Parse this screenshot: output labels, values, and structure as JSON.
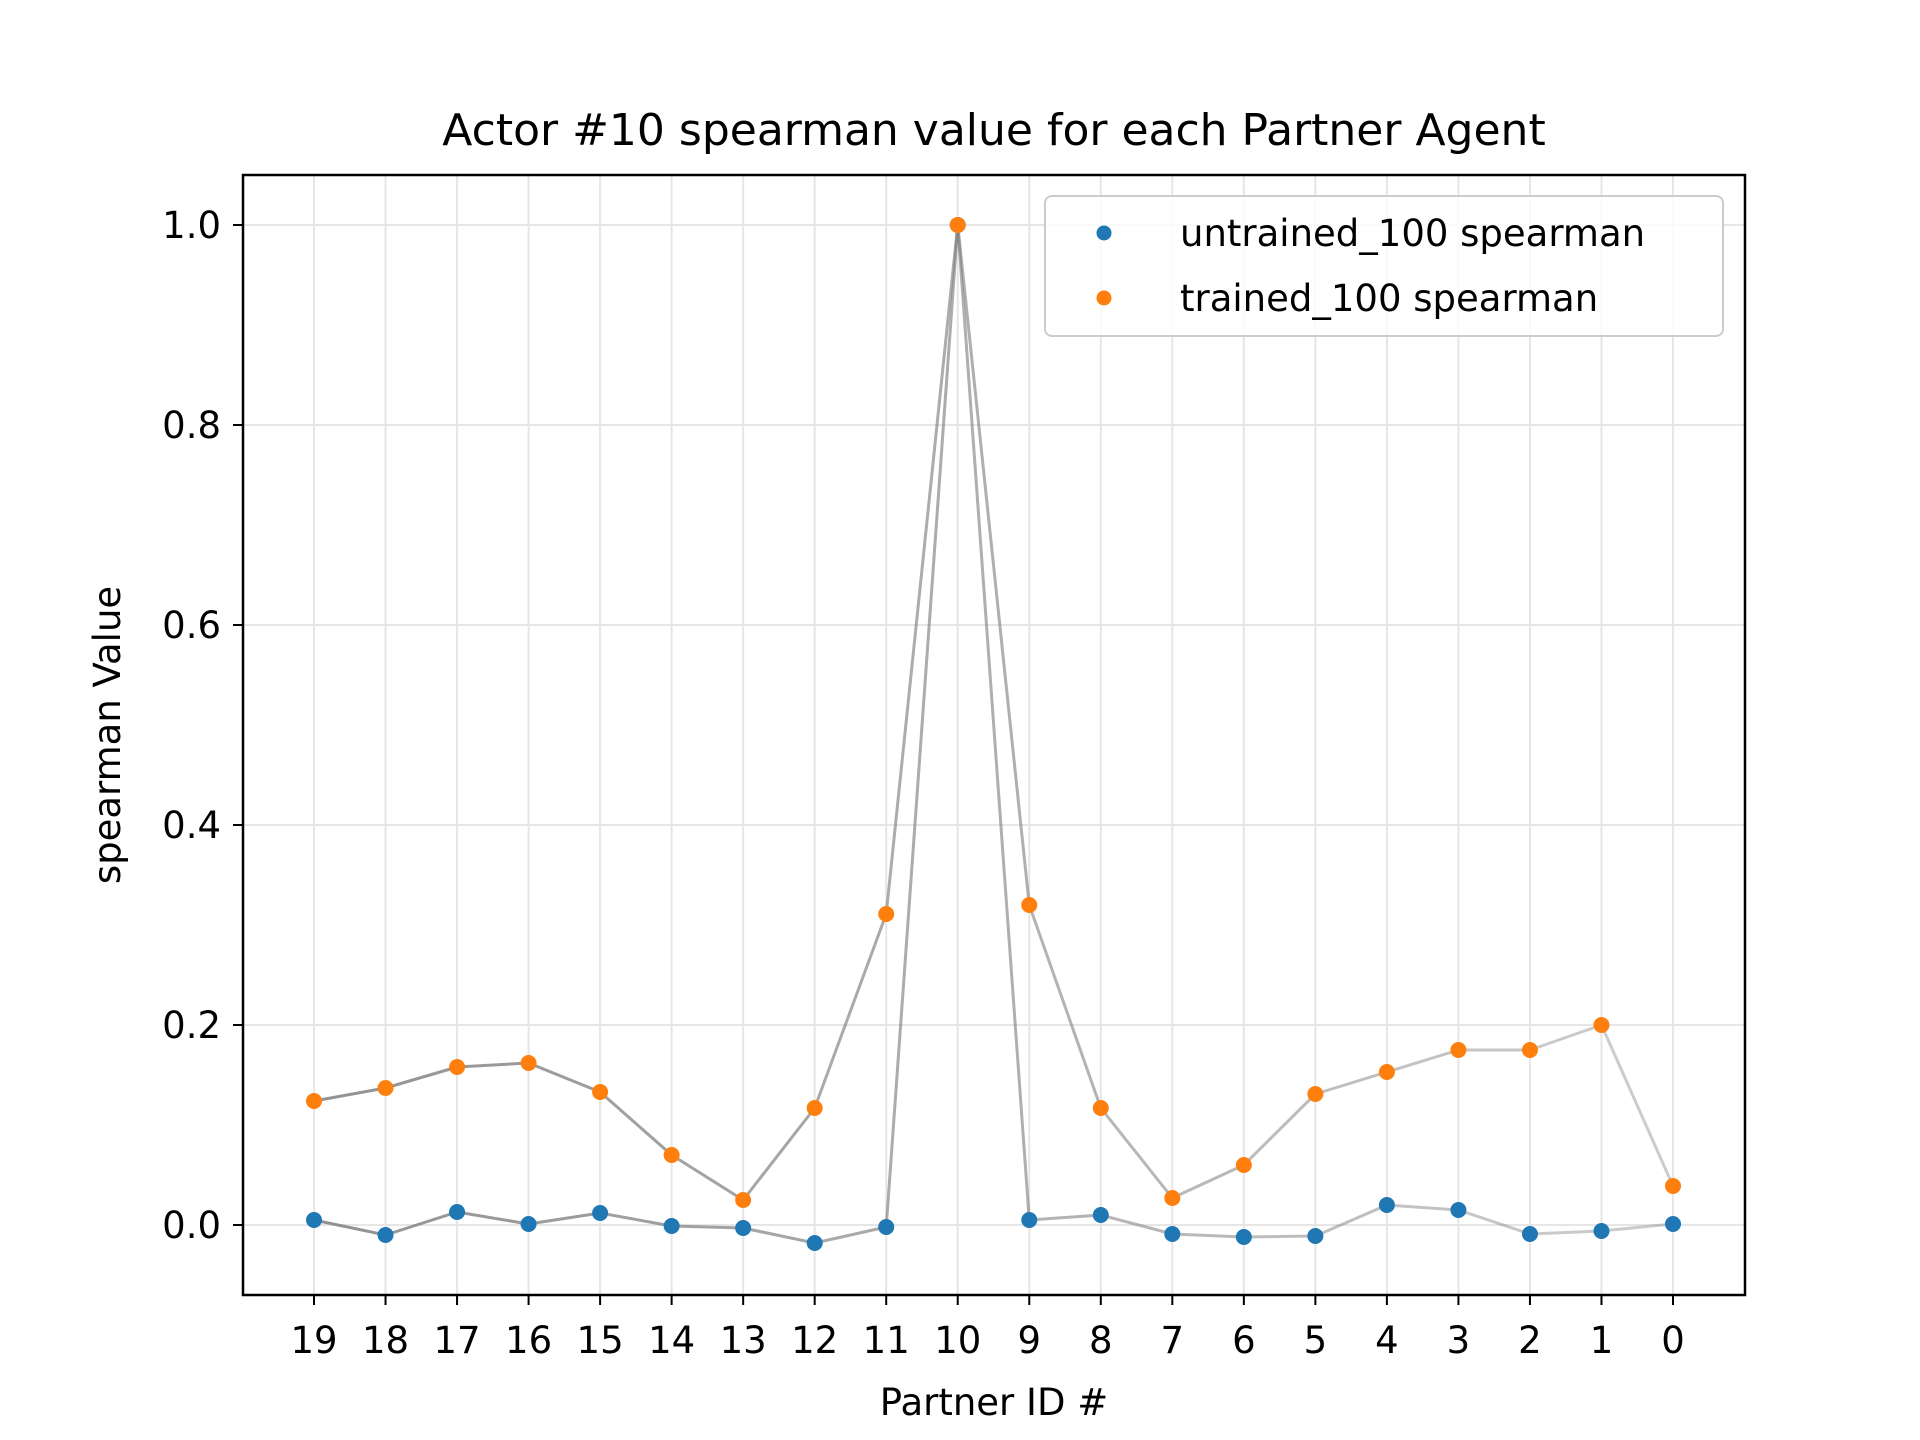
{
  "chart_data": {
    "type": "scatter",
    "title": "Actor #10 spearman value for each Partner Agent",
    "xlabel": "Partner ID #",
    "ylabel": "spearman Value",
    "categories": [
      "19",
      "18",
      "17",
      "16",
      "15",
      "14",
      "13",
      "12",
      "11",
      "10",
      "9",
      "8",
      "7",
      "6",
      "5",
      "4",
      "3",
      "2",
      "1",
      "0"
    ],
    "ylim": [
      -0.07,
      1.05
    ],
    "yticks": [
      "0.0",
      "0.2",
      "0.4",
      "0.6",
      "0.8",
      "1.0"
    ],
    "grid": true,
    "legend_position": "top-right",
    "series": [
      {
        "name": "untrained_100 spearman",
        "color": "#1f77b4",
        "values": [
          0.005,
          -0.01,
          0.013,
          0.001,
          0.012,
          -0.001,
          -0.003,
          -0.018,
          -0.002,
          1.0,
          0.005,
          0.01,
          -0.009,
          -0.012,
          -0.011,
          0.02,
          0.015,
          -0.009,
          -0.006,
          0.001
        ]
      },
      {
        "name": "trained_100 spearman",
        "color": "#ff7f0e",
        "values": [
          0.124,
          0.137,
          0.158,
          0.162,
          0.133,
          0.07,
          0.025,
          0.117,
          0.311,
          1.0,
          0.32,
          0.117,
          0.027,
          0.06,
          0.131,
          0.153,
          0.175,
          0.175,
          0.2,
          0.039
        ]
      }
    ],
    "connector_color": "#808080"
  }
}
